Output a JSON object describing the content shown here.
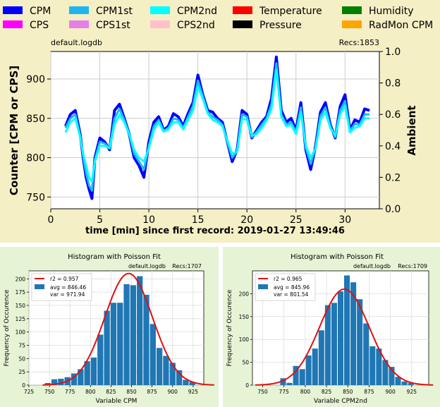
{
  "top_chart": {
    "legend": [
      {
        "label": "CPM",
        "color": "#0000ff"
      },
      {
        "label": "CPM1st",
        "color": "#1fb6f0"
      },
      {
        "label": "CPM2nd",
        "color": "#00ffff"
      },
      {
        "label": "Temperature",
        "color": "#ff0000"
      },
      {
        "label": "Humidity",
        "color": "#008000"
      },
      {
        "label": "CPS",
        "color": "#ff00ff"
      },
      {
        "label": "CPS1st",
        "color": "#e57fe8"
      },
      {
        "label": "CPS2nd",
        "color": "#ffc0cb"
      },
      {
        "label": "Pressure",
        "color": "#000000"
      },
      {
        "label": "RadMon CPM",
        "color": "#ffa500"
      }
    ],
    "file_label": "default.logdb",
    "recs_label": "Recs:1853",
    "xlabel": "time [min] since first record: 2019-01-27 13:49:46",
    "ylabel_left": "Counter  [CPM or CPS]",
    "ylabel_right": "Ambient",
    "x_ticks": [
      "0",
      "5",
      "10",
      "15",
      "20",
      "25",
      "30"
    ],
    "y_ticks_left": [
      "750",
      "800",
      "850",
      "900"
    ],
    "y_ticks_right": [
      "0.0",
      "0.2",
      "0.4",
      "0.6",
      "0.8",
      "1.0"
    ]
  },
  "hist_left": {
    "title": "Histogram with Poisson Fit",
    "file_label": "default.logdb",
    "recs_label": "Recs:1707",
    "xlabel": "Variable CPM",
    "ylabel": "Frequency of Occurence",
    "legend_r2": "r2   = 0.957",
    "legend_avg": "avg = 846.46",
    "legend_var": "var = 971.94",
    "x_ticks": [
      "725",
      "750",
      "775",
      "800",
      "825",
      "850",
      "875",
      "900",
      "925"
    ],
    "y_ticks": [
      "0",
      "25",
      "50",
      "75",
      "100",
      "125",
      "150",
      "175",
      "200"
    ]
  },
  "hist_right": {
    "title": "Histogram with Poisson Fit",
    "file_label": "default.logdb",
    "recs_label": "Recs:1709",
    "xlabel": "Variable CPM2nd",
    "ylabel": "Frequency of Occurence",
    "legend_r2": "r2   = 0.965",
    "legend_avg": "avg = 845.96",
    "legend_var": "var = 801.54",
    "x_ticks": [
      "750",
      "775",
      "800",
      "825",
      "850",
      "875",
      "900",
      "925"
    ],
    "y_ticks": [
      "0",
      "50",
      "100",
      "150",
      "200"
    ]
  },
  "chart_data": [
    {
      "type": "line",
      "xlim": [
        0,
        33.5
      ],
      "ylim": [
        735,
        935
      ],
      "y2lim": [
        0,
        1
      ],
      "grid": true,
      "series": [
        {
          "name": "CPM",
          "color": "#0000ff",
          "x": [
            1.5,
            2,
            2.5,
            3,
            3.3,
            3.6,
            3.9,
            4.2,
            4.5,
            5,
            5.5,
            6,
            6.5,
            7,
            7.5,
            8,
            8.5,
            9,
            9.5,
            10,
            10.5,
            11,
            11.5,
            12,
            12.5,
            13,
            13.5,
            14,
            14.5,
            15,
            15.5,
            16,
            16.5,
            17,
            17.5,
            18,
            18.5,
            19,
            19.5,
            20,
            20.5,
            21,
            21.5,
            22,
            22.5,
            23,
            23.5,
            24,
            24.5,
            25,
            25.5,
            26,
            26.5,
            27,
            27.5,
            28,
            28.5,
            29,
            29.5,
            30,
            30.5,
            31,
            31.5,
            32,
            32.5
          ],
          "y": [
            840,
            855,
            860,
            830,
            800,
            775,
            760,
            748,
            800,
            825,
            820,
            810,
            860,
            868,
            850,
            830,
            800,
            790,
            775,
            820,
            845,
            852,
            835,
            840,
            856,
            852,
            840,
            856,
            870,
            905,
            880,
            860,
            858,
            850,
            845,
            820,
            795,
            810,
            860,
            855,
            825,
            835,
            845,
            852,
            875,
            928,
            860,
            845,
            850,
            835,
            870,
            810,
            785,
            815,
            858,
            870,
            842,
            825,
            865,
            880,
            835,
            848,
            845,
            862,
            860
          ]
        },
        {
          "name": "CPM1st",
          "color": "#1fb6f0",
          "x": [
            1.5,
            2,
            2.5,
            3,
            3.3,
            3.6,
            3.9,
            4.2,
            4.5,
            5,
            5.5,
            6,
            6.5,
            7,
            7.5,
            8,
            8.5,
            9,
            9.5,
            10,
            10.5,
            11,
            11.5,
            12,
            12.5,
            13,
            13.5,
            14,
            14.5,
            15,
            15.5,
            16,
            16.5,
            17,
            17.5,
            18,
            18.5,
            19,
            19.5,
            20,
            20.5,
            21,
            21.5,
            22,
            22.5,
            23,
            23.5,
            24,
            24.5,
            25,
            25.5,
            26,
            26.5,
            27,
            27.5,
            28,
            28.5,
            29,
            29.5,
            30,
            30.5,
            31,
            31.5,
            32,
            32.5
          ],
          "y": [
            838,
            850,
            855,
            828,
            802,
            780,
            765,
            758,
            798,
            820,
            818,
            812,
            850,
            862,
            848,
            830,
            805,
            795,
            785,
            815,
            840,
            848,
            834,
            838,
            850,
            848,
            838,
            852,
            866,
            898,
            878,
            858,
            852,
            848,
            842,
            820,
            800,
            808,
            855,
            852,
            826,
            833,
            842,
            850,
            868,
            920,
            855,
            842,
            845,
            833,
            864,
            812,
            792,
            813,
            853,
            864,
            840,
            826,
            860,
            872,
            834,
            843,
            842,
            855,
            855
          ]
        },
        {
          "name": "CPM2nd",
          "color": "#00ffff",
          "x": [
            1.5,
            2,
            2.5,
            3,
            3.3,
            3.6,
            3.9,
            4.2,
            4.5,
            5,
            5.5,
            6,
            6.5,
            7,
            7.5,
            8,
            8.5,
            9,
            9.5,
            10,
            10.5,
            11,
            11.5,
            12,
            12.5,
            13,
            13.5,
            14,
            14.5,
            15,
            15.5,
            16,
            16.5,
            17,
            17.5,
            18,
            18.5,
            19,
            19.5,
            20,
            20.5,
            21,
            21.5,
            22,
            22.5,
            23,
            23.5,
            24,
            24.5,
            25,
            25.5,
            26,
            26.5,
            27,
            27.5,
            28,
            28.5,
            29,
            29.5,
            30,
            30.5,
            31,
            31.5,
            32,
            32.5
          ],
          "y": [
            832,
            845,
            850,
            826,
            805,
            790,
            775,
            770,
            795,
            815,
            815,
            812,
            842,
            855,
            845,
            830,
            810,
            800,
            795,
            812,
            835,
            845,
            833,
            836,
            845,
            845,
            836,
            848,
            860,
            890,
            875,
            856,
            848,
            845,
            840,
            822,
            805,
            808,
            850,
            848,
            828,
            830,
            838,
            847,
            862,
            912,
            852,
            840,
            842,
            830,
            858,
            815,
            800,
            812,
            848,
            858,
            838,
            828,
            855,
            866,
            832,
            838,
            840,
            850,
            850
          ]
        }
      ]
    },
    {
      "type": "bar",
      "title": "Histogram with Poisson Fit",
      "xlabel": "Variable CPM",
      "ylabel": "Frequency of Occurence",
      "xlim": [
        725,
        938
      ],
      "ylim": [
        0,
        215
      ],
      "bin_width": 8,
      "x": [
        748,
        756,
        764,
        772,
        780,
        788,
        796,
        804,
        812,
        820,
        828,
        836,
        844,
        852,
        860,
        868,
        876,
        884,
        892,
        900,
        908,
        916,
        924
      ],
      "values": [
        4,
        11,
        12,
        15,
        22,
        30,
        45,
        52,
        95,
        140,
        155,
        155,
        190,
        188,
        205,
        170,
        115,
        70,
        55,
        42,
        28,
        10,
        6
      ],
      "fit": {
        "name": "r2",
        "mean": 846.46,
        "peak": 210
      }
    },
    {
      "type": "bar",
      "title": "Histogram with Poisson Fit",
      "xlabel": "Variable CPM2nd",
      "ylabel": "Frequency of Occurence",
      "xlim": [
        738,
        945
      ],
      "ylim": [
        0,
        250
      ],
      "bin_width": 7.5,
      "x": [
        774,
        781.5,
        789,
        796.5,
        804,
        811.5,
        819,
        826.5,
        834,
        841.5,
        849,
        856.5,
        864,
        871.5,
        879,
        886.5,
        894,
        901.5,
        909,
        916.5,
        924
      ],
      "values": [
        15,
        5,
        42,
        35,
        65,
        80,
        120,
        175,
        180,
        205,
        240,
        225,
        188,
        135,
        85,
        80,
        55,
        40,
        18,
        8,
        5
      ],
      "fit": {
        "name": "r2",
        "mean": 845.96,
        "peak": 210
      }
    }
  ]
}
